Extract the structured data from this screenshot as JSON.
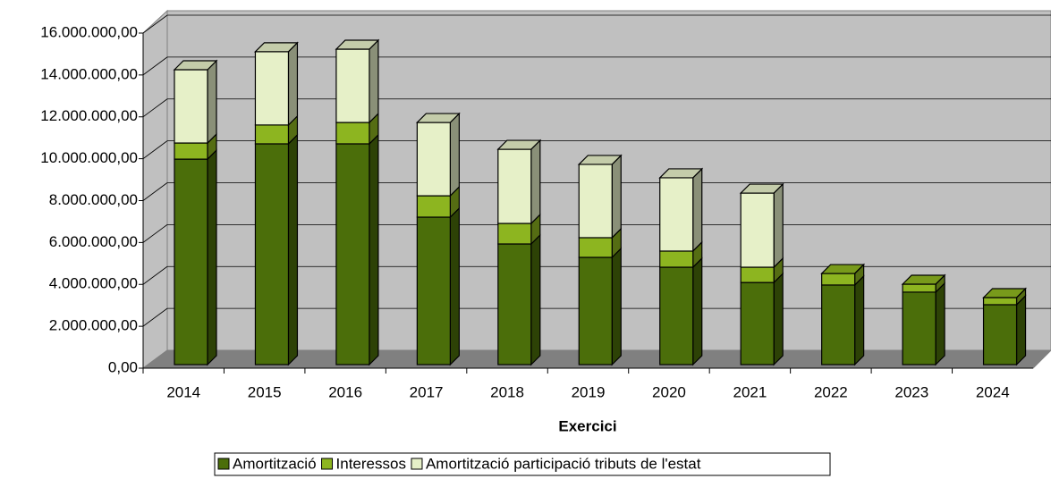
{
  "chart_data": {
    "type": "bar",
    "stacked": true,
    "x_label": "Exercici",
    "categories": [
      "2014",
      "2015",
      "2016",
      "2017",
      "2018",
      "2019",
      "2020",
      "2021",
      "2022",
      "2023",
      "2024"
    ],
    "series": [
      {
        "name": "Amortització",
        "color": "#4b6e0a",
        "values": [
          9810000,
          10540000,
          10540000,
          7040000,
          5760000,
          5120000,
          4650000,
          3920000,
          3800000,
          3460000,
          2860000
        ]
      },
      {
        "name": "Interessos",
        "color": "#8db520",
        "values": [
          770000,
          900000,
          1020000,
          1020000,
          980000,
          940000,
          770000,
          730000,
          550000,
          380000,
          340000
        ]
      },
      {
        "name": "Amortització participació tributs de l'estat",
        "color": "#e6f0c8",
        "values": [
          3500000,
          3500000,
          3500000,
          3500000,
          3540000,
          3500000,
          3500000,
          3540000,
          0,
          0,
          0
        ]
      }
    ],
    "ylim": [
      0,
      16000000
    ],
    "yticks": [
      {
        "value": 0,
        "label": "0,00"
      },
      {
        "value": 2000000,
        "label": "2.000.000,00"
      },
      {
        "value": 4000000,
        "label": "4.000.000,00"
      },
      {
        "value": 6000000,
        "label": "6.000.000,00"
      },
      {
        "value": 8000000,
        "label": "8.000.000,00"
      },
      {
        "value": 10000000,
        "label": "10.000.000,00"
      },
      {
        "value": 12000000,
        "label": "12.000.000,00"
      },
      {
        "value": 14000000,
        "label": "14.000.000,00"
      },
      {
        "value": 16000000,
        "label": "16.000.000,00"
      }
    ],
    "grid": true,
    "legend": "bottom"
  }
}
